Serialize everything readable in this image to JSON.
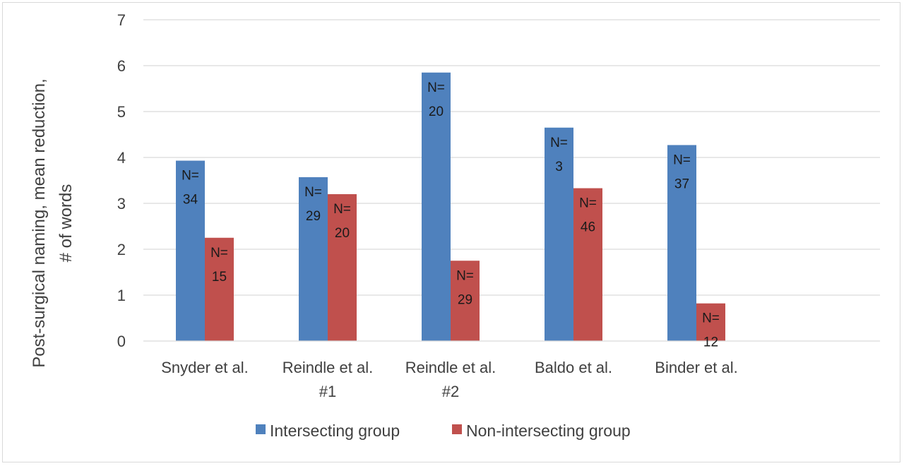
{
  "chart_data": {
    "type": "bar",
    "title": "",
    "xlabel": "",
    "ylabel_lines": [
      "Post-surgical naming, mean reduction,",
      "# of words"
    ],
    "ylim": [
      0,
      7
    ],
    "yticks": [
      "0",
      "1",
      "2",
      "3",
      "4",
      "5",
      "6",
      "7"
    ],
    "grid": true,
    "legend_position": "bottom",
    "categories": [
      {
        "lines": [
          "Snyder et al."
        ]
      },
      {
        "lines": [
          "Reindle et al.",
          "#1"
        ]
      },
      {
        "lines": [
          "Reindle et al.",
          "#2"
        ]
      },
      {
        "lines": [
          "Baldo et al."
        ]
      },
      {
        "lines": [
          "Binder et al."
        ]
      }
    ],
    "series": [
      {
        "name": "Intersecting group",
        "color": "#4f81bd",
        "values": [
          3.93,
          3.57,
          5.85,
          4.65,
          4.27
        ],
        "labels": [
          [
            "N=",
            "34"
          ],
          [
            "N=",
            "29"
          ],
          [
            "N=",
            "20"
          ],
          [
            "N=",
            "3"
          ],
          [
            "N=",
            "37"
          ]
        ]
      },
      {
        "name": "Non-intersecting group",
        "color": "#c0504d",
        "values": [
          2.25,
          3.2,
          1.75,
          3.33,
          0.82
        ],
        "labels": [
          [
            "N=",
            "15"
          ],
          [
            "N=",
            "20"
          ],
          [
            "N=",
            "29"
          ],
          [
            "N=",
            "46"
          ],
          [
            "N=",
            "12"
          ]
        ]
      }
    ]
  }
}
